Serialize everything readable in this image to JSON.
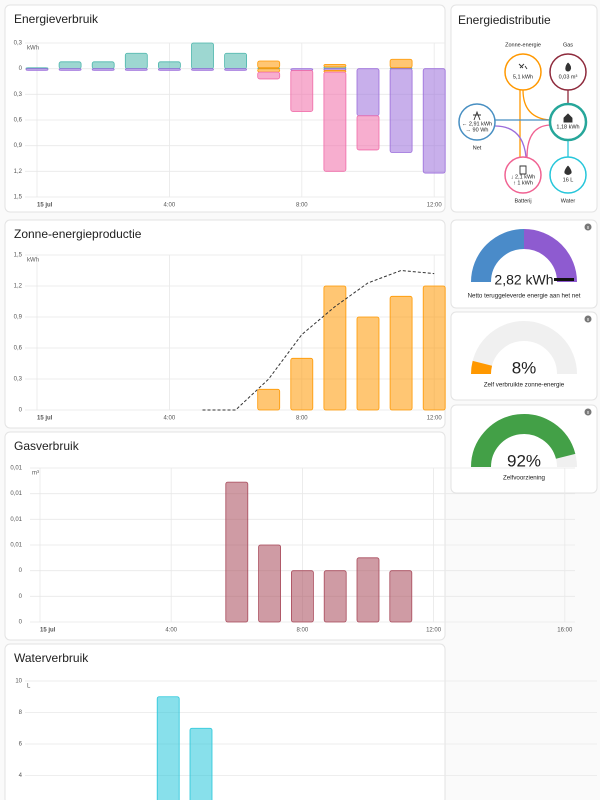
{
  "chart_data": [
    {
      "type": "bar",
      "stacked": true,
      "title": "Energieverbruik",
      "y_unit": "kWh",
      "categories": [
        "15 jul",
        null,
        null,
        null,
        "4:00",
        null,
        null,
        null,
        "8:00",
        null,
        null,
        null,
        "12:00"
      ],
      "series": [
        {
          "color": "#4db6ac",
          "values": [
            0.01,
            0.08,
            0.08,
            0.18,
            0.08,
            0.3,
            0.18,
            0.01,
            0,
            0.02,
            0,
            0.01,
            0
          ]
        },
        {
          "color": "#ff9800",
          "values": [
            0,
            0,
            0,
            0,
            0,
            0,
            0,
            0.08,
            0,
            0.03,
            0,
            0.1,
            0
          ]
        },
        {
          "color": "#9b6ddb",
          "values": [
            -0.02,
            -0.02,
            -0.02,
            -0.02,
            -0.02,
            -0.02,
            -0.02,
            0,
            -0.02,
            -0.02,
            -0.55,
            -0.98,
            -1.22
          ]
        },
        {
          "color": "#ff9800",
          "values": [
            0,
            0,
            0,
            0,
            0,
            0,
            0,
            -0.04,
            0,
            -0.02,
            0,
            0,
            0
          ]
        },
        {
          "color": "#f06ba8",
          "values": [
            0,
            0,
            0,
            0,
            0,
            0,
            0,
            -0.08,
            -0.48,
            -1.16,
            -0.4,
            0,
            0
          ]
        }
      ],
      "ylim": [
        -1.5,
        0.3
      ],
      "yticks": [
        {
          "value": 0.3,
          "label": "0,3"
        },
        0,
        {
          "value": -0.3,
          "label": "0,3"
        },
        {
          "value": -0.6,
          "label": "0,6"
        },
        {
          "value": -0.9,
          "label": "0,9"
        },
        {
          "value": -1.2,
          "label": "1,2"
        },
        {
          "value": -1.5,
          "label": "1,5"
        }
      ]
    },
    {
      "type": "bar",
      "title": "Zonne-energieproductie",
      "y_unit": "kWh",
      "categories": [
        "15 jul",
        null,
        null,
        null,
        "4:00",
        null,
        null,
        null,
        "8:00",
        null,
        null,
        null,
        "12:00"
      ],
      "series": [
        {
          "color": "#ff9800",
          "values": [
            null,
            null,
            null,
            null,
            null,
            null,
            null,
            0.2,
            0.5,
            1.2,
            0.9,
            1.1,
            1.2
          ]
        },
        {
          "type": "line",
          "dashed": true,
          "color": "#333333",
          "values": [
            null,
            null,
            null,
            null,
            null,
            0,
            0,
            0.3,
            0.73,
            1.0,
            1.23,
            1.35,
            1.32
          ]
        }
      ],
      "ylim": [
        0,
        1.5
      ],
      "yticks": [
        0,
        {
          "value": 0.3,
          "label": "0,3"
        },
        {
          "value": 0.6,
          "label": "0,6"
        },
        {
          "value": 0.9,
          "label": "0,9"
        },
        {
          "value": 1.2,
          "label": "1,2"
        },
        {
          "value": 1.5,
          "label": "1,5"
        }
      ]
    },
    {
      "type": "bar",
      "title": "Gasverbruik",
      "y_unit": "m³",
      "categories": [
        "15 jul",
        null,
        null,
        null,
        "4:00",
        null,
        null,
        null,
        "8:00",
        null,
        null,
        null,
        "12:00",
        null,
        null,
        null,
        "16:00"
      ],
      "series": [
        {
          "color": "#a8495a",
          "values": [
            null,
            null,
            null,
            null,
            null,
            null,
            0.0109,
            0.006,
            0.004,
            0.004,
            0.005,
            0.004,
            null,
            null,
            null,
            null,
            null
          ]
        }
      ],
      "ylim": [
        0,
        0.012
      ],
      "yticks": [
        0,
        {
          "value": 0.002,
          "label": "0"
        },
        {
          "value": 0.004,
          "label": "0"
        },
        {
          "value": 0.006,
          "label": "0,01"
        },
        {
          "value": 0.008,
          "label": "0,01"
        },
        {
          "value": 0.01,
          "label": "0,01"
        },
        {
          "value": 0.012,
          "label": "0,01"
        }
      ]
    },
    {
      "type": "bar",
      "title": "Waterverbruik",
      "y_unit": "L",
      "categories": [
        null,
        null,
        null,
        null,
        null,
        null,
        null,
        null,
        null,
        null,
        null,
        null,
        null,
        null,
        null,
        null,
        null
      ],
      "series": [
        {
          "color": "#26c6da",
          "values": [
            null,
            null,
            null,
            null,
            9,
            7,
            null,
            null,
            null,
            null,
            null,
            null,
            null,
            null,
            null,
            null,
            null
          ]
        }
      ],
      "ylim": [
        0,
        10
      ],
      "yticks": [
        4,
        6,
        8,
        10
      ]
    }
  ],
  "energy_distribution": {
    "title": "Energiedistributie",
    "nodes": [
      {
        "label": "Zonne-energie",
        "color": "#ff9800",
        "values": [
          "5,1 kWh"
        ]
      },
      {
        "label": "Gas",
        "color": "#8e2a3c",
        "values": [
          "0,03 m³"
        ]
      },
      {
        "label": "Net",
        "color": "#488fc2",
        "values": [
          "← 2,91 kWh",
          "→ 90 Wh"
        ]
      },
      {
        "color": "#26a69a",
        "values": [
          "1,18 kWh"
        ]
      },
      {
        "label": "Batterij",
        "color": "#f06292",
        "values": [
          "↓ 2,1 kWh",
          "↑ 1 kWh"
        ]
      },
      {
        "label": "Water",
        "color": "#26c6da",
        "values": [
          "16 L"
        ]
      }
    ]
  },
  "gauges": [
    {
      "value": 2.82,
      "value_label": "2,82 kWh",
      "label": "Netto teruggeleverde energie aan het net"
    },
    {
      "value": 8,
      "value_label": "8%",
      "label": "Zelf verbruikte zonne-energie",
      "color": "#ff9800"
    },
    {
      "value": 92,
      "value_label": "92%",
      "label": "Zelfvoorziening",
      "color": "#43a047"
    }
  ]
}
